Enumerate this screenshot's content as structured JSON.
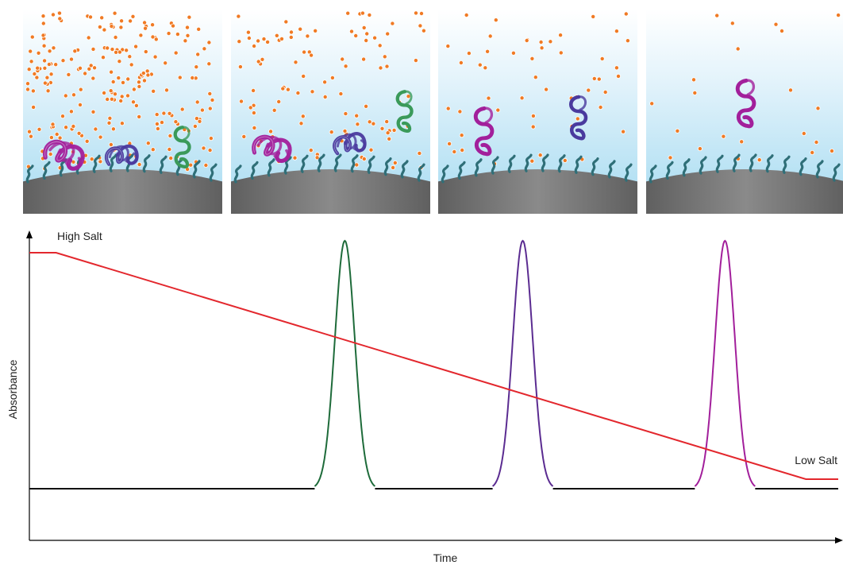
{
  "labels": {
    "high_salt": "High Salt",
    "low_salt": "Low Salt",
    "y_axis": "Absorbance",
    "x_axis": "Time"
  },
  "panels": [
    {
      "name": "panel-1",
      "salt_level": "high",
      "proteins_bound": [
        "magenta",
        "blue"
      ],
      "proteins_free": [
        "green"
      ]
    },
    {
      "name": "panel-2",
      "salt_level": "medium-high",
      "proteins_bound": [
        "magenta",
        "blue"
      ],
      "proteins_free": [
        "green"
      ]
    },
    {
      "name": "panel-3",
      "salt_level": "medium-low",
      "proteins_bound": [],
      "proteins_free": [
        "magenta",
        "blue"
      ]
    },
    {
      "name": "panel-4",
      "salt_level": "low",
      "proteins_bound": [],
      "proteins_free": [
        "magenta"
      ]
    }
  ],
  "chart_data": {
    "type": "line",
    "series": [
      {
        "color": "#1e6b3a",
        "peak_time": 0.39
      },
      {
        "color": "#5b2c91",
        "peak_time": 0.61
      },
      {
        "color": "#a21f9b",
        "peak_time": 0.86
      }
    ],
    "gradient": {
      "color": "#e3272d",
      "description": "salt concentration decreases linearly from high to low over time"
    }
  },
  "colors": {
    "salt_dot": "#f07a24",
    "bead": "#7a7a7a",
    "ligand": "#2f6f78",
    "sky_top": "#ffffff",
    "sky_bottom": "#a6dbf1",
    "protein_magenta": "#a21f9b",
    "protein_blue": "#4a3a9e",
    "protein_green": "#3a9a5a"
  }
}
